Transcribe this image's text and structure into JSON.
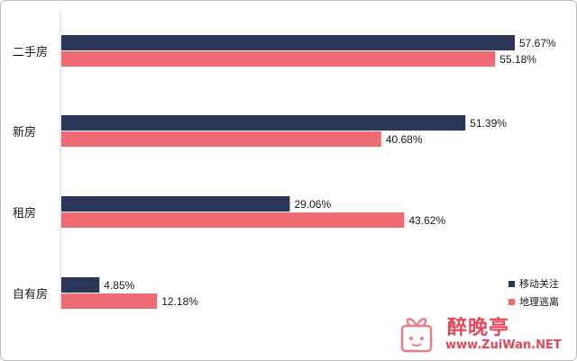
{
  "chart_data": {
    "type": "bar",
    "orientation": "horizontal",
    "categories": [
      "二手房",
      "新房",
      "租房",
      "自有房"
    ],
    "series": [
      {
        "name": "移动关注",
        "values": [
          57.67,
          51.39,
          29.06,
          4.85
        ],
        "labels": [
          "57.67%",
          "51.39%",
          "29.06%",
          "4.85%"
        ]
      },
      {
        "name": "地理逃离",
        "values": [
          55.18,
          40.68,
          43.62,
          12.18
        ],
        "labels": [
          "55.18%",
          "40.68%",
          "43.62%",
          "12.18%"
        ]
      }
    ],
    "xlim": [
      0,
      57.67
    ],
    "grid": false,
    "legend": "bottom-right"
  },
  "colors": {
    "series_1": "#2b3557",
    "series_2": "#ee6b73",
    "axis": "#d9d9d9"
  },
  "watermark": {
    "name": "醉晚亭",
    "url": "www.ZuiWan.NET",
    "icon": "gift-icon"
  }
}
